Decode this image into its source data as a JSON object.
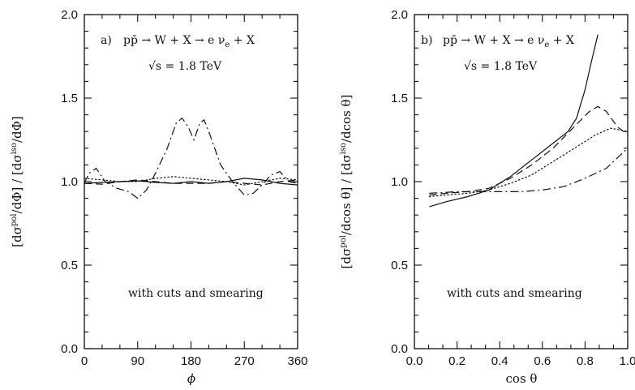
{
  "chart_data": [
    {
      "type": "line",
      "panel_label": "a)",
      "process": "pp̄ → W + X → e ν",
      "process_sub": "e",
      "process_tail": " + X",
      "energy": "√s = 1.8 TeV",
      "note": "with cuts and smearing",
      "xlabel": "ϕ",
      "ylabel": "[dσpol/dΦ] / [dσiso/dΦ]",
      "ylabel_parts": [
        "[d",
        "σ",
        "pol",
        "/dΦ] / [d",
        "σ",
        "iso",
        "/dΦ]"
      ],
      "xlim": [
        0,
        360
      ],
      "ylim": [
        0.0,
        2.0
      ],
      "xticks": [
        0,
        90,
        180,
        270,
        360
      ],
      "xtick_labels": [
        "0",
        "90",
        "180",
        "270",
        "360"
      ],
      "yticks": [
        0.0,
        0.5,
        1.0,
        1.5,
        2.0
      ],
      "ytick_labels": [
        "0.0",
        "0.5",
        "1.0",
        "1.5",
        "2.0"
      ],
      "series": [
        {
          "style": "solid",
          "points": [
            [
              0,
              0.99
            ],
            [
              30,
              0.995
            ],
            [
              60,
              1.0
            ],
            [
              90,
              1.005
            ],
            [
              120,
              0.995
            ],
            [
              150,
              0.99
            ],
            [
              180,
              1.0
            ],
            [
              210,
              0.99
            ],
            [
              240,
              1.0
            ],
            [
              270,
              1.02
            ],
            [
              300,
              1.01
            ],
            [
              330,
              0.99
            ],
            [
              360,
              0.98
            ]
          ]
        },
        {
          "style": "dashed",
          "points": [
            [
              0,
              0.99
            ],
            [
              30,
              0.985
            ],
            [
              60,
              1.0
            ],
            [
              90,
              1.01
            ],
            [
              120,
              1.0
            ],
            [
              150,
              0.99
            ],
            [
              180,
              0.99
            ],
            [
              210,
              0.99
            ],
            [
              240,
              1.0
            ],
            [
              270,
              0.99
            ],
            [
              300,
              0.98
            ],
            [
              330,
              1.0
            ],
            [
              360,
              1.01
            ]
          ]
        },
        {
          "style": "dotted",
          "points": [
            [
              0,
              1.02
            ],
            [
              30,
              1.01
            ],
            [
              60,
              1.0
            ],
            [
              90,
              1.0
            ],
            [
              120,
              1.02
            ],
            [
              150,
              1.03
            ],
            [
              180,
              1.02
            ],
            [
              210,
              1.01
            ],
            [
              240,
              1.0
            ],
            [
              270,
              0.98
            ],
            [
              300,
              1.0
            ],
            [
              330,
              1.02
            ],
            [
              360,
              1.01
            ]
          ]
        },
        {
          "style": "dashdot",
          "points": [
            [
              0,
              0.99
            ],
            [
              8,
              1.05
            ],
            [
              20,
              1.08
            ],
            [
              35,
              1.0
            ],
            [
              55,
              0.96
            ],
            [
              75,
              0.94
            ],
            [
              90,
              0.9
            ],
            [
              105,
              0.95
            ],
            [
              120,
              1.05
            ],
            [
              140,
              1.2
            ],
            [
              155,
              1.35
            ],
            [
              165,
              1.38
            ],
            [
              175,
              1.33
            ],
            [
              185,
              1.25
            ],
            [
              195,
              1.35
            ],
            [
              202,
              1.37
            ],
            [
              212,
              1.28
            ],
            [
              230,
              1.1
            ],
            [
              250,
              1.0
            ],
            [
              270,
              0.92
            ],
            [
              285,
              0.93
            ],
            [
              300,
              0.98
            ],
            [
              315,
              1.04
            ],
            [
              330,
              1.06
            ],
            [
              345,
              1.0
            ],
            [
              360,
              0.99
            ]
          ]
        }
      ]
    },
    {
      "type": "line",
      "panel_label": "b)",
      "process": "pp̄ → W + X → e ν",
      "process_sub": "e",
      "process_tail": " + X",
      "energy": "√s = 1.8 TeV",
      "note": "with cuts and smearing",
      "xlabel": "cos θ",
      "ylabel": "[dσpol/dcos θ] / [dσiso/dcos θ]",
      "ylabel_parts": [
        "[d",
        "σ",
        "pol",
        "/dcos θ] / [d",
        "σ",
        "iso",
        "/dcos θ]"
      ],
      "xlim": [
        0.0,
        1.0
      ],
      "ylim": [
        0.0,
        2.0
      ],
      "xticks": [
        0.0,
        0.2,
        0.4,
        0.6,
        0.8,
        1.0
      ],
      "xtick_labels": [
        "0.0",
        "0.2",
        "0.4",
        "0.6",
        "0.8",
        "1.0"
      ],
      "yticks": [
        0.0,
        0.5,
        1.0,
        1.5,
        2.0
      ],
      "ytick_labels": [
        "0.0",
        "0.5",
        "1.0",
        "1.5",
        "2.0"
      ],
      "series": [
        {
          "style": "solid",
          "points": [
            [
              0.07,
              0.85
            ],
            [
              0.15,
              0.88
            ],
            [
              0.25,
              0.91
            ],
            [
              0.35,
              0.95
            ],
            [
              0.45,
              1.03
            ],
            [
              0.55,
              1.13
            ],
            [
              0.65,
              1.23
            ],
            [
              0.72,
              1.3
            ],
            [
              0.76,
              1.38
            ],
            [
              0.8,
              1.55
            ],
            [
              0.83,
              1.72
            ],
            [
              0.86,
              1.88
            ]
          ]
        },
        {
          "style": "dashed",
          "points": [
            [
              0.07,
              0.92
            ],
            [
              0.15,
              0.93
            ],
            [
              0.25,
              0.94
            ],
            [
              0.35,
              0.96
            ],
            [
              0.45,
              1.02
            ],
            [
              0.55,
              1.1
            ],
            [
              0.65,
              1.2
            ],
            [
              0.75,
              1.33
            ],
            [
              0.82,
              1.42
            ],
            [
              0.86,
              1.45
            ],
            [
              0.9,
              1.42
            ],
            [
              0.95,
              1.33
            ],
            [
              1.0,
              1.28
            ]
          ]
        },
        {
          "style": "dotted",
          "points": [
            [
              0.07,
              0.91
            ],
            [
              0.15,
              0.92
            ],
            [
              0.25,
              0.93
            ],
            [
              0.35,
              0.95
            ],
            [
              0.45,
              0.99
            ],
            [
              0.55,
              1.04
            ],
            [
              0.65,
              1.12
            ],
            [
              0.75,
              1.2
            ],
            [
              0.85,
              1.28
            ],
            [
              0.92,
              1.32
            ],
            [
              1.0,
              1.3
            ]
          ]
        },
        {
          "style": "dashdot",
          "points": [
            [
              0.07,
              0.93
            ],
            [
              0.2,
              0.94
            ],
            [
              0.35,
              0.94
            ],
            [
              0.5,
              0.94
            ],
            [
              0.6,
              0.95
            ],
            [
              0.7,
              0.97
            ],
            [
              0.8,
              1.02
            ],
            [
              0.9,
              1.08
            ],
            [
              1.0,
              1.2
            ]
          ]
        }
      ]
    }
  ]
}
